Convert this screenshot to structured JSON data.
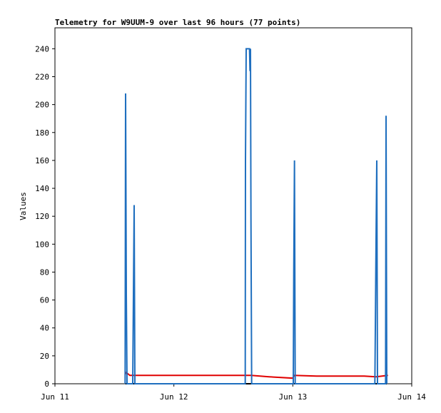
{
  "chart_data": {
    "type": "line",
    "title": "Telemetry for W9UUM-9 over last 96 hours (77 points)",
    "ylabel": "Values",
    "xlim": [
      0,
      3
    ],
    "xticks": [
      {
        "value": 0,
        "label": "Jun 11"
      },
      {
        "value": 1,
        "label": "Jun 12"
      },
      {
        "value": 2,
        "label": "Jun 13"
      },
      {
        "value": 3,
        "label": "Jun 14"
      }
    ],
    "ylim": [
      0,
      255
    ],
    "yticks": [
      0,
      20,
      40,
      60,
      80,
      100,
      120,
      140,
      160,
      180,
      200,
      220,
      240
    ],
    "series": [
      {
        "color": "#000000",
        "x": [
          0.594,
          2.79
        ],
        "values": [
          0,
          0
        ]
      },
      {
        "color": "#e00000",
        "x": [
          0.594,
          0.6,
          0.63,
          1.65,
          1.8,
          2.0,
          2.01,
          2.2,
          2.6,
          2.7,
          2.8
        ],
        "values": [
          7,
          8,
          6,
          6,
          5,
          4,
          6,
          5.5,
          5.5,
          5,
          6
        ]
      },
      {
        "color": "#1f6fbf",
        "x": [
          0.59,
          0.594,
          0.6,
          0.606,
          0.654,
          0.66,
          0.666,
          0.672,
          1.6,
          1.602,
          1.608,
          1.636,
          1.64,
          1.644,
          1.648,
          1.654,
          2.004,
          2.008,
          2.014,
          2.02,
          2.69,
          2.694,
          2.7,
          2.706,
          2.712,
          2.78,
          2.784,
          2.79
        ],
        "values": [
          0,
          208,
          64,
          0,
          0,
          64,
          128,
          0,
          0,
          160,
          240,
          240,
          224,
          240,
          120,
          0,
          0,
          80,
          160,
          0,
          0,
          40,
          104,
          160,
          0,
          0,
          192,
          0
        ]
      }
    ]
  }
}
